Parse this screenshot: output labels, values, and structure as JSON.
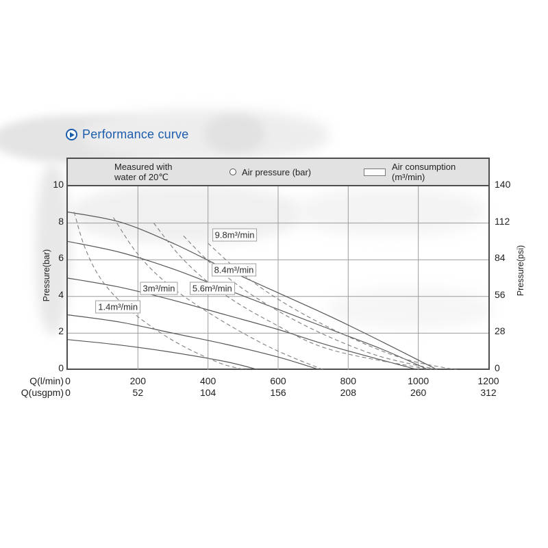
{
  "page": {
    "title": "Performance curve"
  },
  "legend": {
    "note_line1": "Measured with",
    "note_line2": "water of 20℃",
    "air_pressure_label": "Air pressure (bar)",
    "air_consumption_line1": "Air consumption",
    "air_consumption_line2": "(m³/min)"
  },
  "axes": {
    "left_title": "Pressure(bar)",
    "right_title": "Pressure(psi)",
    "x_row1_label": "Q(l/min)",
    "x_row2_label": "Q(usgpm)"
  },
  "colors": {
    "title_blue": "#1b5cad",
    "frame": "#4d4d4d",
    "grid": "#9b9b9b",
    "band": "#e2e2e2",
    "solid_curve": "#565656",
    "dashed_curve": "#7e7e7e"
  },
  "chart_data": {
    "type": "line",
    "title": "Performance curve",
    "note": "Measured with water of 20℃",
    "x_axis": {
      "label": "Q(l/min)",
      "min": 0,
      "max": 1200,
      "ticks": [
        0,
        200,
        400,
        600,
        800,
        1000,
        1200
      ]
    },
    "x_axis_secondary": {
      "label": "Q(usgpm)",
      "ticks": [
        0,
        52,
        104,
        156,
        208,
        260,
        312
      ]
    },
    "y_axis_bar": {
      "label": "Pressure(bar)",
      "min": 0,
      "max": 10,
      "ticks": [
        0,
        2,
        4,
        6,
        8,
        10
      ]
    },
    "y_axis_psi": {
      "label": "Pressure(psi)",
      "ticks": [
        0,
        28,
        56,
        84,
        112,
        140
      ]
    },
    "grid": true,
    "legend": [
      "Air pressure (bar)",
      "Air consumption (m³/min)"
    ],
    "series_air_pressure": [
      {
        "name": "air-pressure-curve-1",
        "points": [
          [
            0,
            8.6
          ],
          [
            150,
            8.05
          ],
          [
            300,
            6.9
          ],
          [
            450,
            5.5
          ],
          [
            600,
            4.2
          ],
          [
            750,
            2.9
          ],
          [
            900,
            1.5
          ],
          [
            1055,
            0
          ]
        ]
      },
      {
        "name": "air-pressure-curve-2",
        "points": [
          [
            0,
            7.0
          ],
          [
            150,
            6.4
          ],
          [
            300,
            5.5
          ],
          [
            450,
            4.4
          ],
          [
            600,
            3.3
          ],
          [
            750,
            2.2
          ],
          [
            900,
            1.1
          ],
          [
            1030,
            0
          ]
        ]
      },
      {
        "name": "air-pressure-curve-3",
        "points": [
          [
            0,
            5.0
          ],
          [
            150,
            4.5
          ],
          [
            300,
            3.8
          ],
          [
            450,
            3.0
          ],
          [
            600,
            2.2
          ],
          [
            750,
            1.3
          ],
          [
            1000,
            0
          ]
        ]
      },
      {
        "name": "air-pressure-curve-4",
        "points": [
          [
            0,
            3.0
          ],
          [
            150,
            2.6
          ],
          [
            300,
            2.0
          ],
          [
            450,
            1.4
          ],
          [
            600,
            0.7
          ],
          [
            720,
            0
          ]
        ]
      },
      {
        "name": "air-pressure-curve-5",
        "points": [
          [
            0,
            1.65
          ],
          [
            150,
            1.35
          ],
          [
            300,
            0.95
          ],
          [
            450,
            0.45
          ],
          [
            545,
            0
          ]
        ]
      }
    ],
    "series_air_consumption": [
      {
        "name": "1.4m³/min",
        "points": [
          [
            18,
            8.6
          ],
          [
            50,
            6.6
          ],
          [
            100,
            4.8
          ],
          [
            180,
            3.2
          ],
          [
            300,
            1.6
          ],
          [
            430,
            0.4
          ],
          [
            510,
            0
          ]
        ]
      },
      {
        "name": "3m³/min",
        "points": [
          [
            130,
            8.3
          ],
          [
            200,
            6.3
          ],
          [
            290,
            4.6
          ],
          [
            420,
            2.9
          ],
          [
            580,
            1.2
          ],
          [
            730,
            0
          ]
        ]
      },
      {
        "name": "5.6m³/min",
        "points": [
          [
            245,
            8.0
          ],
          [
            330,
            6.0
          ],
          [
            440,
            4.2
          ],
          [
            580,
            2.6
          ],
          [
            750,
            1.1
          ],
          [
            1040,
            0
          ]
        ]
      },
      {
        "name": "8.4m³/min",
        "points": [
          [
            330,
            7.3
          ],
          [
            420,
            5.6
          ],
          [
            540,
            3.9
          ],
          [
            700,
            2.2
          ],
          [
            880,
            0.8
          ],
          [
            1060,
            0
          ]
        ]
      },
      {
        "name": "9.8m³/min",
        "points": [
          [
            400,
            6.9
          ],
          [
            500,
            5.2
          ],
          [
            630,
            3.5
          ],
          [
            790,
            1.9
          ],
          [
            960,
            0.6
          ],
          [
            1110,
            0
          ]
        ]
      }
    ],
    "annotations": [
      {
        "text": "1.4m³/min",
        "q": 143,
        "p": 3.43
      },
      {
        "text": "3m³/min",
        "q": 260,
        "p": 4.44
      },
      {
        "text": "5.6m³/min",
        "q": 412,
        "p": 4.44
      },
      {
        "text": "8.4m³/min",
        "q": 474,
        "p": 5.45
      },
      {
        "text": "9.8m³/min",
        "q": 476,
        "p": 7.35
      }
    ]
  }
}
